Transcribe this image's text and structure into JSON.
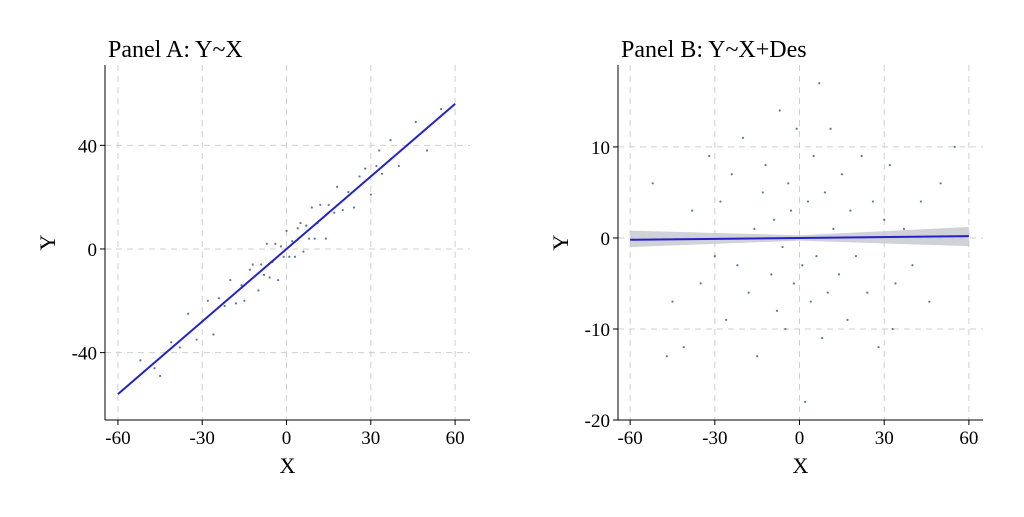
{
  "chart_data": [
    {
      "type": "scatter",
      "title": "Panel A: Y~X",
      "x_label": "X",
      "y_label": "Y",
      "xlim": [
        -64.6,
        65.3
      ],
      "ylim": [
        -66,
        71
      ],
      "xticks": [
        -60,
        -30,
        0,
        30,
        60
      ],
      "yticks": [
        -40,
        0,
        40
      ],
      "grid": true,
      "points": {
        "color": "#5b7896",
        "x": [
          -52,
          -45,
          -41,
          -38,
          -35,
          -32,
          -30,
          -28,
          -26,
          -24,
          -22,
          -20,
          -18,
          -16,
          -15,
          -13,
          -12,
          -10,
          -9,
          -8,
          -7,
          -6,
          -5,
          -4,
          -3,
          -2,
          -1,
          0,
          1,
          2,
          3,
          4,
          5,
          6,
          7,
          8,
          9,
          10,
          11,
          12,
          14,
          15,
          17,
          18,
          20,
          22,
          24,
          26,
          28,
          30,
          32,
          34,
          37,
          40,
          43,
          46,
          50,
          55,
          -47,
          33
        ],
        "y": [
          -43,
          -49,
          -36,
          -38,
          -25,
          -35,
          -28,
          -20,
          -33,
          -19,
          -22,
          -12,
          -21,
          -14,
          -20,
          -8,
          -6,
          -16,
          -6,
          -10,
          2,
          -11,
          -5,
          2,
          -12,
          1,
          -3,
          7,
          -3,
          3,
          -3,
          8,
          10,
          -1,
          9,
          4,
          16,
          4,
          10,
          17,
          4,
          17,
          14,
          24,
          15,
          22,
          16,
          28,
          31,
          21,
          32,
          29,
          42,
          32,
          40,
          49,
          38,
          54,
          -46,
          38
        ]
      },
      "fit": {
        "color": "#2323c8",
        "x": [
          -60,
          60
        ],
        "y": [
          -56,
          56
        ]
      }
    },
    {
      "type": "scatter",
      "title": "Panel B: Y~X+Des",
      "x_label": "X",
      "y_label": "Y",
      "xlim": [
        -64.3,
        65
      ],
      "ylim": [
        -20,
        19
      ],
      "xticks": [
        -60,
        -30,
        0,
        30,
        60
      ],
      "yticks": [
        -20,
        -10,
        0,
        10
      ],
      "grid": true,
      "points": {
        "color": "#5b7896",
        "x": [
          -52,
          -45,
          -41,
          -38,
          -35,
          -32,
          -30,
          -28,
          -26,
          -24,
          -22,
          -20,
          -18,
          -16,
          -15,
          -13,
          -12,
          -10,
          -9,
          -8,
          -7,
          -6,
          -5,
          -4,
          -3,
          -2,
          -1,
          0,
          1,
          2,
          3,
          4,
          5,
          6,
          7,
          8,
          9,
          10,
          11,
          12,
          14,
          15,
          17,
          18,
          20,
          22,
          24,
          26,
          28,
          30,
          32,
          34,
          37,
          40,
          43,
          46,
          50,
          55,
          -47,
          33
        ],
        "y": [
          6,
          -7,
          -12,
          3,
          -5,
          9,
          -2,
          4,
          -9,
          7,
          -3,
          11,
          -6,
          1,
          -13,
          5,
          8,
          -4,
          2,
          -8,
          14,
          -1,
          -10,
          6,
          3,
          -5,
          12,
          0,
          -3,
          -18,
          4,
          -7,
          9,
          -2,
          17,
          -11,
          5,
          -6,
          12,
          1,
          -4,
          7,
          -9,
          3,
          -2,
          9,
          -6,
          4,
          -12,
          2,
          8,
          -5,
          1,
          -3,
          4,
          -7,
          6,
          10,
          -13,
          -10
        ]
      },
      "fit": {
        "color": "#2323c8",
        "x": [
          -60,
          0,
          60
        ],
        "y": [
          -0.2,
          0,
          0.2
        ]
      },
      "band": {
        "color": "#c8c9d2",
        "x": [
          -60,
          0,
          60
        ],
        "lower": [
          -1.0,
          -0.3,
          -0.9
        ],
        "upper": [
          0.8,
          0.3,
          1.2
        ]
      }
    }
  ]
}
